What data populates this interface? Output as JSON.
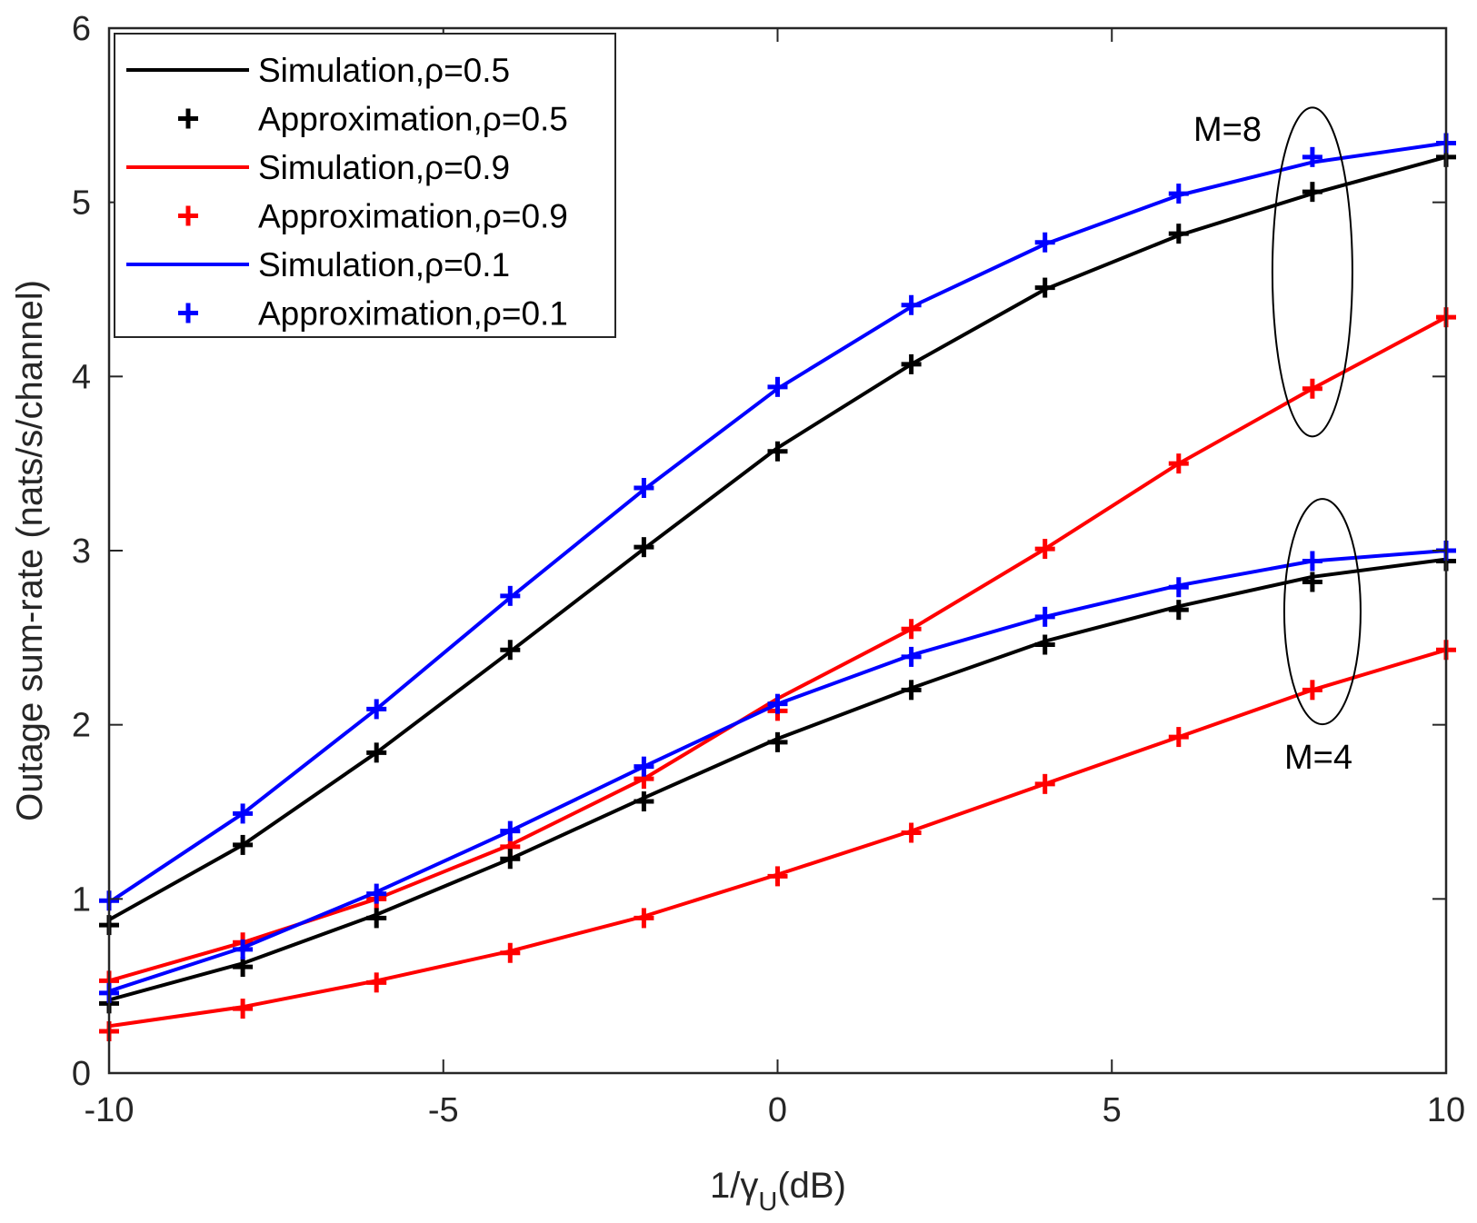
{
  "chart_data": {
    "type": "line",
    "title": "",
    "xlabel": "1/γ",
    "xlabel_sub": "U",
    "xlabel_suffix": "(dB)",
    "ylabel": "Outage sum-rate (nats/s/channel)",
    "xlim": [
      -10,
      10
    ],
    "ylim": [
      0,
      6
    ],
    "x_ticks": [
      -10,
      -5,
      0,
      5,
      10
    ],
    "y_ticks": [
      0,
      1,
      2,
      3,
      4,
      5,
      6
    ],
    "grid": false,
    "legend_position": "top-left",
    "x": [
      -10,
      -8,
      -6,
      -4,
      -2,
      0,
      2,
      4,
      6,
      8,
      10
    ],
    "legend": [
      {
        "label": "Simulation,ρ=0.5",
        "kind": "line",
        "color": "#000000"
      },
      {
        "label": "Approximation,ρ=0.5",
        "kind": "marker",
        "color": "#000000"
      },
      {
        "label": "Simulation,ρ=0.9",
        "kind": "line",
        "color": "#ff0000"
      },
      {
        "label": "Approximation,ρ=0.9",
        "kind": "marker",
        "color": "#ff0000"
      },
      {
        "label": "Simulation,ρ=0.1",
        "kind": "line",
        "color": "#0000ff"
      },
      {
        "label": "Approximation,ρ=0.1",
        "kind": "marker",
        "color": "#0000ff"
      }
    ],
    "series": [
      {
        "group": "M=8",
        "rho": 0.5,
        "color": "#000000",
        "simulation": [
          0.88,
          1.31,
          1.84,
          2.42,
          3.01,
          3.59,
          4.07,
          4.5,
          4.81,
          5.05,
          5.26
        ],
        "approximation": [
          0.85,
          1.31,
          1.84,
          2.43,
          3.02,
          3.57,
          4.07,
          4.51,
          4.82,
          5.06,
          5.26
        ]
      },
      {
        "group": "M=8",
        "rho": 0.9,
        "color": "#ff0000",
        "simulation": [
          0.53,
          0.75,
          1.0,
          1.31,
          1.69,
          2.15,
          2.55,
          3.01,
          3.5,
          3.93,
          4.34
        ],
        "approximation": [
          0.53,
          0.75,
          1.0,
          1.3,
          1.69,
          2.08,
          2.55,
          3.01,
          3.5,
          3.93,
          4.34
        ]
      },
      {
        "group": "M=8",
        "rho": 0.1,
        "color": "#0000ff",
        "simulation": [
          0.98,
          1.49,
          2.09,
          2.73,
          3.35,
          3.93,
          4.4,
          4.76,
          5.04,
          5.23,
          5.34
        ],
        "approximation": [
          0.99,
          1.49,
          2.09,
          2.74,
          3.36,
          3.94,
          4.41,
          4.77,
          5.05,
          5.26,
          5.34
        ]
      },
      {
        "group": "M=4",
        "rho": 0.5,
        "color": "#000000",
        "simulation": [
          0.42,
          0.63,
          0.91,
          1.23,
          1.58,
          1.92,
          2.21,
          2.48,
          2.68,
          2.85,
          2.95
        ],
        "approximation": [
          0.4,
          0.61,
          0.89,
          1.23,
          1.56,
          1.9,
          2.2,
          2.46,
          2.66,
          2.82,
          2.94
        ]
      },
      {
        "group": "M=4",
        "rho": 0.9,
        "color": "#ff0000",
        "simulation": [
          0.27,
          0.38,
          0.53,
          0.7,
          0.9,
          1.14,
          1.39,
          1.66,
          1.93,
          2.2,
          2.43
        ],
        "approximation": [
          0.24,
          0.37,
          0.52,
          0.69,
          0.89,
          1.13,
          1.38,
          1.66,
          1.93,
          2.2,
          2.43
        ]
      },
      {
        "group": "M=4",
        "rho": 0.1,
        "color": "#0000ff",
        "simulation": [
          0.47,
          0.72,
          1.04,
          1.39,
          1.76,
          2.12,
          2.4,
          2.62,
          2.8,
          2.94,
          3.0
        ],
        "approximation": [
          0.46,
          0.71,
          1.03,
          1.39,
          1.76,
          2.12,
          2.39,
          2.62,
          2.79,
          2.94,
          3.0
        ]
      }
    ],
    "annotations": [
      {
        "text": "M=8",
        "ellipse_center": [
          8.0,
          4.6
        ]
      },
      {
        "text": "M=4",
        "ellipse_center": [
          8.15,
          2.65
        ]
      }
    ]
  }
}
